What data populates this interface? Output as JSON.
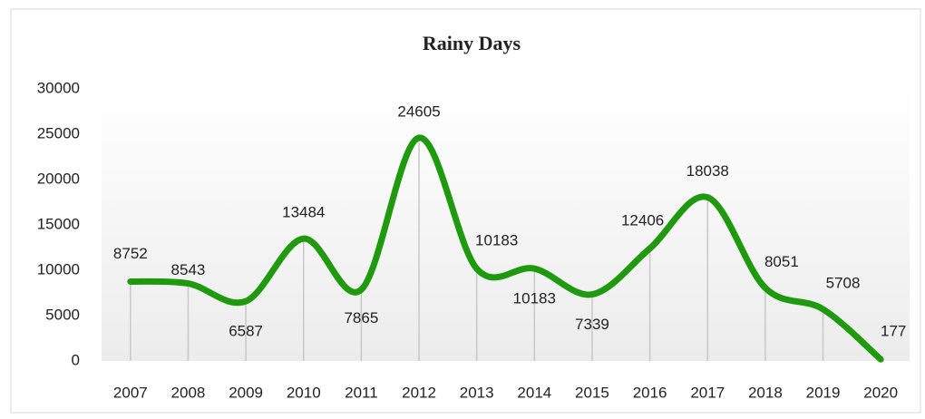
{
  "chart_data": {
    "type": "line",
    "title": "Rainy Days",
    "categories": [
      "2007",
      "2008",
      "2009",
      "2010",
      "2011",
      "2012",
      "2013",
      "2014",
      "2015",
      "2016",
      "2017",
      "2018",
      "2019",
      "2020"
    ],
    "values": [
      8752,
      8543,
      6587,
      13484,
      7865,
      24605,
      10183,
      10183,
      7339,
      12406,
      18038,
      8051,
      5708,
      177
    ],
    "color": "#1f9a0f",
    "ylim": [
      0,
      30000
    ],
    "yticks": [
      0,
      5000,
      10000,
      15000,
      20000,
      25000,
      30000
    ],
    "smooth": true,
    "drop_lines": true
  }
}
